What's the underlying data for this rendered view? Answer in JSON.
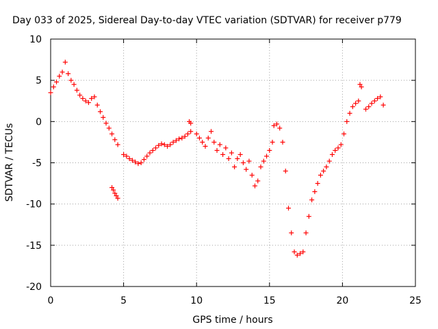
{
  "chart_data": {
    "type": "scatter",
    "title": "Day 033 of 2025, Sidereal Day-to-day VTEC variation (SDTVAR) for receiver p779",
    "xlabel": "GPS time / hours",
    "ylabel": "SDTVAR / TECUs",
    "xlim": [
      0,
      25
    ],
    "ylim": [
      -20,
      10
    ],
    "xticks": [
      0,
      5,
      10,
      15,
      20,
      25
    ],
    "yticks": [
      -20,
      -15,
      -10,
      -5,
      0,
      5,
      10
    ],
    "grid": true,
    "marker": "plus",
    "color": "#ff0000",
    "series": [
      {
        "x": [
          0.0,
          0.2,
          0.4,
          0.6,
          0.8,
          1.0,
          1.2,
          1.4,
          1.6,
          1.8,
          2.0,
          2.2,
          2.4,
          2.6,
          2.8,
          3.0,
          3.2,
          3.4,
          3.6,
          3.8,
          4.0,
          4.2,
          4.4,
          4.6
        ],
        "y": [
          3.5,
          4.2,
          4.8,
          5.5,
          6.0,
          7.2,
          5.8,
          5.0,
          4.5,
          3.8,
          3.2,
          2.8,
          2.5,
          2.3,
          2.8,
          3.0,
          2.0,
          1.2,
          0.5,
          -0.2,
          -0.8,
          -1.5,
          -2.2,
          -2.8
        ]
      },
      {
        "x": [
          4.2,
          4.3,
          4.4,
          4.5,
          4.6
        ],
        "y": [
          -8.0,
          -8.3,
          -8.7,
          -9.0,
          -9.3
        ]
      },
      {
        "x": [
          5.0,
          5.2,
          5.4,
          5.6,
          5.8,
          6.0,
          6.2,
          6.4,
          6.6,
          6.8,
          7.0,
          7.2,
          7.4,
          7.6,
          7.8,
          8.0,
          8.2,
          8.4,
          8.6,
          8.8,
          9.0,
          9.2,
          9.4,
          9.6
        ],
        "y": [
          -4.0,
          -4.2,
          -4.5,
          -4.7,
          -4.9,
          -5.1,
          -5.0,
          -4.6,
          -4.2,
          -3.8,
          -3.5,
          -3.2,
          -2.9,
          -2.7,
          -2.8,
          -3.0,
          -2.8,
          -2.5,
          -2.3,
          -2.1,
          -2.0,
          -1.8,
          -1.5,
          -1.2
        ]
      },
      {
        "x": [
          9.5,
          9.6
        ],
        "y": [
          0.0,
          -0.2
        ]
      },
      {
        "x": [
          10.0,
          10.2,
          10.4,
          10.6,
          10.8,
          11.0,
          11.2,
          11.4,
          11.6,
          11.8,
          12.0,
          12.2,
          12.4,
          12.6,
          12.8,
          13.0,
          13.2,
          13.4,
          13.6,
          13.8,
          14.0,
          14.2,
          14.4,
          14.6,
          14.8,
          15.0,
          15.2
        ],
        "y": [
          -1.5,
          -2.0,
          -2.5,
          -3.0,
          -2.0,
          -1.2,
          -2.5,
          -3.5,
          -2.8,
          -4.0,
          -3.2,
          -4.5,
          -3.8,
          -5.5,
          -4.5,
          -4.0,
          -5.0,
          -5.8,
          -4.8,
          -6.5,
          -7.8,
          -7.2,
          -5.5,
          -4.8,
          -4.2,
          -3.5,
          -2.5
        ]
      },
      {
        "x": [
          15.3,
          15.5,
          15.7,
          15.9,
          16.1,
          16.3,
          16.5,
          16.7,
          16.9,
          17.1,
          17.3,
          17.5,
          17.7,
          17.9,
          18.1,
          18.3,
          18.5,
          18.7,
          18.9,
          19.1,
          19.3,
          19.5,
          19.7,
          19.9,
          20.1,
          20.3,
          20.5,
          20.7,
          20.9,
          21.1
        ],
        "y": [
          -0.5,
          -0.3,
          -0.8,
          -2.5,
          -6.0,
          -10.5,
          -13.5,
          -15.8,
          -16.2,
          -16.0,
          -15.8,
          -13.5,
          -11.5,
          -9.5,
          -8.5,
          -7.5,
          -6.5,
          -6.0,
          -5.5,
          -4.8,
          -4.0,
          -3.5,
          -3.2,
          -2.8,
          -1.5,
          0.0,
          1.0,
          1.8,
          2.2,
          2.5
        ]
      },
      {
        "x": [
          21.2,
          21.3
        ],
        "y": [
          4.5,
          4.2
        ]
      },
      {
        "x": [
          21.6,
          21.8,
          22.0,
          22.2,
          22.4,
          22.6,
          22.8
        ],
        "y": [
          1.5,
          1.8,
          2.2,
          2.5,
          2.8,
          3.0,
          2.0
        ]
      }
    ]
  }
}
